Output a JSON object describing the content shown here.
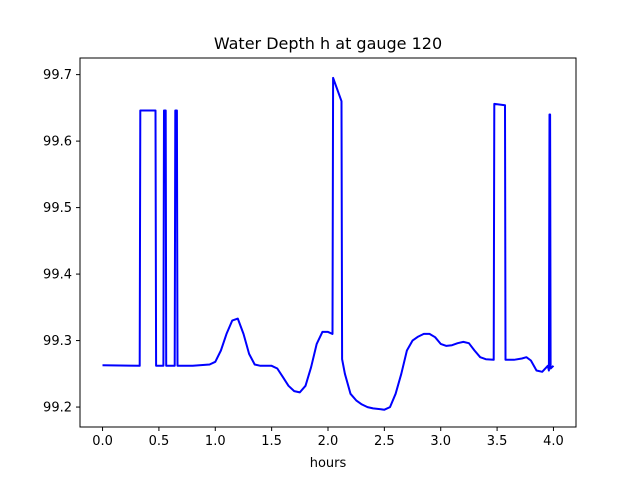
{
  "chart_data": {
    "type": "line",
    "title": "Water Depth h at gauge 120",
    "xlabel": "hours",
    "ylabel": "",
    "xlim": [
      -0.2,
      4.2
    ],
    "ylim": [
      99.17,
      99.725
    ],
    "x_ticks": [
      0.0,
      0.5,
      1.0,
      1.5,
      2.0,
      2.5,
      3.0,
      3.5,
      4.0
    ],
    "x_tick_labels": [
      "0.0",
      "0.5",
      "1.0",
      "1.5",
      "2.0",
      "2.5",
      "3.0",
      "3.5",
      "4.0"
    ],
    "y_ticks": [
      99.2,
      99.3,
      99.4,
      99.5,
      99.6,
      99.7
    ],
    "y_tick_labels": [
      "99.2",
      "99.3",
      "99.4",
      "99.5",
      "99.6",
      "99.7"
    ],
    "grid": false,
    "series": [
      {
        "color": "#0000ff",
        "x": [
          0.0,
          0.33,
          0.335,
          0.47,
          0.475,
          0.54,
          0.545,
          0.56,
          0.565,
          0.64,
          0.645,
          0.66,
          0.665,
          0.8,
          0.95,
          1.0,
          1.05,
          1.1,
          1.15,
          1.2,
          1.25,
          1.3,
          1.35,
          1.4,
          1.5,
          1.55,
          1.6,
          1.65,
          1.7,
          1.75,
          1.8,
          1.85,
          1.9,
          1.95,
          2.0,
          2.04,
          2.045,
          2.12,
          2.125,
          2.15,
          2.2,
          2.25,
          2.3,
          2.35,
          2.4,
          2.5,
          2.55,
          2.6,
          2.65,
          2.7,
          2.75,
          2.8,
          2.85,
          2.9,
          2.95,
          3.0,
          3.05,
          3.1,
          3.15,
          3.2,
          3.25,
          3.3,
          3.35,
          3.4,
          3.47,
          3.475,
          3.57,
          3.575,
          3.65,
          3.72,
          3.76,
          3.8,
          3.85,
          3.9,
          3.95,
          3.96,
          3.965,
          3.97,
          3.975,
          4.0
        ],
        "y": [
          99.263,
          99.262,
          99.646,
          99.646,
          99.262,
          99.262,
          99.646,
          99.646,
          99.262,
          99.262,
          99.646,
          99.646,
          99.262,
          99.262,
          99.264,
          99.268,
          99.285,
          99.31,
          99.33,
          99.333,
          99.31,
          99.28,
          99.264,
          99.262,
          99.262,
          99.258,
          99.245,
          99.232,
          99.224,
          99.222,
          99.232,
          99.26,
          99.295,
          99.313,
          99.313,
          99.31,
          99.695,
          99.66,
          99.272,
          99.25,
          99.22,
          99.21,
          99.204,
          99.2,
          99.198,
          99.196,
          99.2,
          99.22,
          99.25,
          99.285,
          99.3,
          99.306,
          99.31,
          99.31,
          99.305,
          99.295,
          99.292,
          99.293,
          99.296,
          99.298,
          99.296,
          99.285,
          99.275,
          99.272,
          99.271,
          99.656,
          99.654,
          99.271,
          99.271,
          99.273,
          99.275,
          99.27,
          99.255,
          99.253,
          99.262,
          99.255,
          99.64,
          99.64,
          99.258,
          99.262
        ]
      }
    ]
  }
}
